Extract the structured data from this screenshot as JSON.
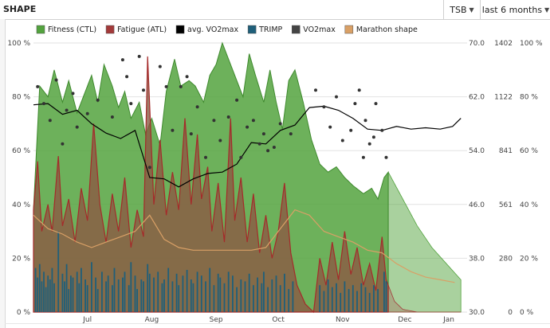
{
  "header": {
    "title": "SHAPE",
    "metric_select": "TSB",
    "range_select": "last 6 months"
  },
  "chart_data": {
    "type": "area",
    "legend": [
      {
        "name": "Fitness (CTL)",
        "color": "#53a33e"
      },
      {
        "name": "Fatigue (ATL)",
        "color": "#a33a3a"
      },
      {
        "name": "avg. VO2max",
        "color": "#000000"
      },
      {
        "name": "TRIMP",
        "color": "#1f5f7a"
      },
      {
        "name": "VO2max",
        "color": "#444444"
      },
      {
        "name": "Marathon shape",
        "color": "#d9a066"
      }
    ],
    "x_ticks": [
      "Jul",
      "Aug",
      "Sep",
      "Oct",
      "Nov",
      "Dec",
      "Jan"
    ],
    "x_domain": [
      "2016-06-19",
      "2017-01-14"
    ],
    "y_left": {
      "ticks": [
        "100 %",
        "80 %",
        "60 %",
        "40 %",
        "20 %",
        "0 %"
      ],
      "range": [
        0,
        100
      ]
    },
    "y_vo2max": {
      "ticks": [
        "70.0",
        "62.0",
        "54.0",
        "46.0",
        "38.0",
        "30.0"
      ],
      "range": [
        30,
        70
      ]
    },
    "y_trimp": {
      "ticks": [
        "1402",
        "1122",
        "841",
        "561",
        "280",
        "0"
      ],
      "range": [
        0,
        1402
      ]
    },
    "y_right": {
      "ticks": [
        "100 %",
        "80 %",
        "60 %",
        "40 %",
        "20 %",
        "0 %"
      ],
      "range": [
        0,
        100
      ]
    },
    "fitness": [
      [
        "2016-06-19",
        38
      ],
      [
        "2016-06-22",
        84
      ],
      [
        "2016-06-26",
        80
      ],
      [
        "2016-06-29",
        90
      ],
      [
        "2016-07-03",
        78
      ],
      [
        "2016-07-06",
        86
      ],
      [
        "2016-07-10",
        74
      ],
      [
        "2016-07-14",
        82
      ],
      [
        "2016-07-17",
        88
      ],
      [
        "2016-07-20",
        78
      ],
      [
        "2016-07-23",
        92
      ],
      [
        "2016-07-27",
        84
      ],
      [
        "2016-07-30",
        76
      ],
      [
        "2016-08-02",
        82
      ],
      [
        "2016-08-05",
        72
      ],
      [
        "2016-08-09",
        78
      ],
      [
        "2016-08-12",
        66
      ],
      [
        "2016-08-15",
        72
      ],
      [
        "2016-08-19",
        62
      ],
      [
        "2016-08-22",
        82
      ],
      [
        "2016-08-26",
        94
      ],
      [
        "2016-08-29",
        84
      ],
      [
        "2016-09-02",
        86
      ],
      [
        "2016-09-05",
        84
      ],
      [
        "2016-09-09",
        78
      ],
      [
        "2016-09-12",
        88
      ],
      [
        "2016-09-15",
        92
      ],
      [
        "2016-09-18",
        100
      ],
      [
        "2016-09-21",
        94
      ],
      [
        "2016-09-25",
        86
      ],
      [
        "2016-09-28",
        80
      ],
      [
        "2016-10-01",
        96
      ],
      [
        "2016-10-04",
        88
      ],
      [
        "2016-10-08",
        78
      ],
      [
        "2016-10-11",
        90
      ],
      [
        "2016-10-14",
        78
      ],
      [
        "2016-10-17",
        68
      ],
      [
        "2016-10-20",
        86
      ],
      [
        "2016-10-23",
        90
      ],
      [
        "2016-10-27",
        78
      ],
      [
        "2016-10-31",
        64
      ],
      [
        "2016-11-04",
        55
      ],
      [
        "2016-11-08",
        52
      ],
      [
        "2016-11-12",
        54
      ],
      [
        "2016-11-16",
        50
      ],
      [
        "2016-11-20",
        47
      ],
      [
        "2016-11-25",
        44
      ],
      [
        "2016-11-29",
        46
      ],
      [
        "2016-12-02",
        42
      ],
      [
        "2016-12-05",
        50
      ],
      [
        "2016-12-07",
        52
      ]
    ],
    "fitness_forecast": [
      [
        "2016-12-07",
        52
      ],
      [
        "2016-12-14",
        42
      ],
      [
        "2016-12-21",
        32
      ],
      [
        "2016-12-28",
        24
      ],
      [
        "2017-01-04",
        18
      ],
      [
        "2017-01-11",
        12
      ]
    ],
    "fatigue": [
      [
        "2016-06-19",
        38
      ],
      [
        "2016-06-21",
        56
      ],
      [
        "2016-06-23",
        30
      ],
      [
        "2016-06-26",
        40
      ],
      [
        "2016-06-28",
        30
      ],
      [
        "2016-07-01",
        58
      ],
      [
        "2016-07-03",
        32
      ],
      [
        "2016-07-06",
        42
      ],
      [
        "2016-07-09",
        26
      ],
      [
        "2016-07-12",
        46
      ],
      [
        "2016-07-15",
        34
      ],
      [
        "2016-07-18",
        70
      ],
      [
        "2016-07-21",
        40
      ],
      [
        "2016-07-24",
        26
      ],
      [
        "2016-07-27",
        44
      ],
      [
        "2016-07-30",
        30
      ],
      [
        "2016-08-02",
        50
      ],
      [
        "2016-08-05",
        24
      ],
      [
        "2016-08-08",
        38
      ],
      [
        "2016-08-11",
        28
      ],
      [
        "2016-08-13",
        95
      ],
      [
        "2016-08-16",
        40
      ],
      [
        "2016-08-19",
        64
      ],
      [
        "2016-08-22",
        36
      ],
      [
        "2016-08-25",
        52
      ],
      [
        "2016-08-28",
        38
      ],
      [
        "2016-08-31",
        72
      ],
      [
        "2016-09-03",
        40
      ],
      [
        "2016-09-06",
        66
      ],
      [
        "2016-09-08",
        42
      ],
      [
        "2016-09-11",
        54
      ],
      [
        "2016-09-13",
        30
      ],
      [
        "2016-09-16",
        48
      ],
      [
        "2016-09-19",
        26
      ],
      [
        "2016-09-22",
        72
      ],
      [
        "2016-09-24",
        34
      ],
      [
        "2016-09-27",
        50
      ],
      [
        "2016-09-30",
        26
      ],
      [
        "2016-10-03",
        44
      ],
      [
        "2016-10-06",
        22
      ],
      [
        "2016-10-09",
        36
      ],
      [
        "2016-10-12",
        20
      ],
      [
        "2016-10-15",
        30
      ],
      [
        "2016-10-18",
        48
      ],
      [
        "2016-10-21",
        22
      ],
      [
        "2016-10-24",
        10
      ],
      [
        "2016-10-28",
        3
      ],
      [
        "2016-11-01",
        0
      ],
      [
        "2016-11-04",
        20
      ],
      [
        "2016-11-07",
        10
      ],
      [
        "2016-11-10",
        26
      ],
      [
        "2016-11-13",
        12
      ],
      [
        "2016-11-16",
        30
      ],
      [
        "2016-11-19",
        14
      ],
      [
        "2016-11-22",
        24
      ],
      [
        "2016-11-25",
        10
      ],
      [
        "2016-11-28",
        18
      ],
      [
        "2016-12-01",
        8
      ],
      [
        "2016-12-04",
        28
      ],
      [
        "2016-12-06",
        12
      ],
      [
        "2016-12-07",
        10
      ]
    ],
    "fatigue_forecast": [
      [
        "2016-12-07",
        10
      ],
      [
        "2016-12-10",
        4
      ],
      [
        "2016-12-14",
        1
      ],
      [
        "2016-12-21",
        0
      ],
      [
        "2017-01-11",
        0
      ]
    ],
    "marathon_shape": [
      [
        "2016-06-19",
        36
      ],
      [
        "2016-06-26",
        31
      ],
      [
        "2016-07-03",
        29
      ],
      [
        "2016-07-10",
        26
      ],
      [
        "2016-07-17",
        24
      ],
      [
        "2016-07-24",
        26
      ],
      [
        "2016-07-31",
        28
      ],
      [
        "2016-08-07",
        30
      ],
      [
        "2016-08-14",
        36
      ],
      [
        "2016-08-21",
        27
      ],
      [
        "2016-08-28",
        24
      ],
      [
        "2016-09-04",
        23
      ],
      [
        "2016-09-11",
        23
      ],
      [
        "2016-09-18",
        23
      ],
      [
        "2016-09-25",
        23
      ],
      [
        "2016-10-02",
        23
      ],
      [
        "2016-10-09",
        24
      ],
      [
        "2016-10-16",
        31
      ],
      [
        "2016-10-23",
        38
      ],
      [
        "2016-10-30",
        36
      ],
      [
        "2016-11-06",
        30
      ],
      [
        "2016-11-13",
        28
      ],
      [
        "2016-11-20",
        26
      ],
      [
        "2016-11-27",
        23
      ],
      [
        "2016-12-04",
        22
      ],
      [
        "2016-12-11",
        18
      ],
      [
        "2016-12-18",
        15
      ],
      [
        "2016-12-25",
        13
      ],
      [
        "2017-01-01",
        12
      ],
      [
        "2017-01-08",
        11
      ]
    ],
    "avg_vo2max": [
      [
        "2016-06-19",
        60.8
      ],
      [
        "2016-06-26",
        61.0
      ],
      [
        "2016-07-03",
        59.4
      ],
      [
        "2016-07-10",
        60.0
      ],
      [
        "2016-07-17",
        58.0
      ],
      [
        "2016-07-24",
        56.6
      ],
      [
        "2016-07-31",
        55.8
      ],
      [
        "2016-08-07",
        57.0
      ],
      [
        "2016-08-14",
        50.0
      ],
      [
        "2016-08-21",
        49.8
      ],
      [
        "2016-08-28",
        48.6
      ],
      [
        "2016-09-04",
        49.8
      ],
      [
        "2016-09-11",
        50.6
      ],
      [
        "2016-09-18",
        50.8
      ],
      [
        "2016-09-25",
        52.0
      ],
      [
        "2016-10-02",
        55.2
      ],
      [
        "2016-10-09",
        55.0
      ],
      [
        "2016-10-16",
        57.0
      ],
      [
        "2016-10-23",
        57.8
      ],
      [
        "2016-10-30",
        60.4
      ],
      [
        "2016-11-06",
        60.6
      ],
      [
        "2016-11-13",
        60.0
      ],
      [
        "2016-11-20",
        58.8
      ],
      [
        "2016-11-27",
        57.2
      ],
      [
        "2016-12-04",
        57.0
      ],
      [
        "2016-12-11",
        57.6
      ],
      [
        "2016-12-18",
        57.2
      ],
      [
        "2016-12-25",
        57.4
      ],
      [
        "2017-01-01",
        57.2
      ],
      [
        "2017-01-07",
        57.6
      ],
      [
        "2017-01-11",
        58.8
      ]
    ],
    "vo2max_points": [
      [
        "2016-06-21",
        63.5
      ],
      [
        "2016-06-24",
        61.0
      ],
      [
        "2016-06-27",
        58.5
      ],
      [
        "2016-06-30",
        64.5
      ],
      [
        "2016-07-03",
        55.0
      ],
      [
        "2016-07-05",
        60.0
      ],
      [
        "2016-07-08",
        62.5
      ],
      [
        "2016-07-10",
        57.5
      ],
      [
        "2016-07-15",
        59.5
      ],
      [
        "2016-07-20",
        61.5
      ],
      [
        "2016-07-27",
        59.0
      ],
      [
        "2016-08-01",
        67.5
      ],
      [
        "2016-08-03",
        65.0
      ],
      [
        "2016-08-05",
        61.0
      ],
      [
        "2016-08-09",
        68.0
      ],
      [
        "2016-08-11",
        63.0
      ],
      [
        "2016-08-14",
        51.5
      ],
      [
        "2016-08-19",
        66.5
      ],
      [
        "2016-08-22",
        63.5
      ],
      [
        "2016-08-25",
        57.0
      ],
      [
        "2016-08-29",
        63.5
      ],
      [
        "2016-09-01",
        65.0
      ],
      [
        "2016-09-03",
        56.5
      ],
      [
        "2016-09-06",
        60.5
      ],
      [
        "2016-09-10",
        53.0
      ],
      [
        "2016-09-14",
        58.5
      ],
      [
        "2016-09-17",
        55.5
      ],
      [
        "2016-09-21",
        59.0
      ],
      [
        "2016-09-25",
        61.5
      ],
      [
        "2016-09-27",
        53.0
      ],
      [
        "2016-09-30",
        57.5
      ],
      [
        "2016-10-03",
        58.5
      ],
      [
        "2016-10-06",
        55.0
      ],
      [
        "2016-10-08",
        56.5
      ],
      [
        "2016-10-13",
        54.5
      ],
      [
        "2016-10-16",
        58.0
      ],
      [
        "2016-10-21",
        56.5
      ],
      [
        "2016-11-02",
        63.0
      ],
      [
        "2016-11-06",
        60.5
      ],
      [
        "2016-11-09",
        57.5
      ],
      [
        "2016-11-12",
        62.0
      ],
      [
        "2016-11-15",
        55.5
      ],
      [
        "2016-11-19",
        57.0
      ],
      [
        "2016-11-23",
        63.0
      ],
      [
        "2016-11-26",
        58.5
      ],
      [
        "2016-11-28",
        55.0
      ],
      [
        "2016-12-01",
        61.0
      ],
      [
        "2016-12-04",
        57.0
      ],
      [
        "2016-12-06",
        53.0
      ],
      [
        "2016-11-21",
        61.0
      ],
      [
        "2016-11-25",
        53.0
      ],
      [
        "2016-10-10",
        54.0
      ],
      [
        "2016-11-30",
        56.0
      ]
    ],
    "trimp": [
      [
        "2016-06-20",
        230
      ],
      [
        "2016-06-21",
        180
      ],
      [
        "2016-06-22",
        250
      ],
      [
        "2016-06-23",
        160
      ],
      [
        "2016-06-24",
        210
      ],
      [
        "2016-06-25",
        130
      ],
      [
        "2016-06-26",
        190
      ],
      [
        "2016-06-27",
        170
      ],
      [
        "2016-06-28",
        230
      ],
      [
        "2016-06-29",
        150
      ],
      [
        "2016-07-01",
        420
      ],
      [
        "2016-07-03",
        200
      ],
      [
        "2016-07-04",
        160
      ],
      [
        "2016-07-05",
        250
      ],
      [
        "2016-07-06",
        120
      ],
      [
        "2016-07-07",
        190
      ],
      [
        "2016-07-08",
        180
      ],
      [
        "2016-07-10",
        210
      ],
      [
        "2016-07-11",
        150
      ],
      [
        "2016-07-12",
        230
      ],
      [
        "2016-07-14",
        170
      ],
      [
        "2016-07-15",
        140
      ],
      [
        "2016-07-17",
        260
      ],
      [
        "2016-07-19",
        180
      ],
      [
        "2016-07-20",
        120
      ],
      [
        "2016-07-22",
        210
      ],
      [
        "2016-07-24",
        160
      ],
      [
        "2016-07-25",
        190
      ],
      [
        "2016-07-27",
        140
      ],
      [
        "2016-07-28",
        230
      ],
      [
        "2016-07-30",
        170
      ],
      [
        "2016-08-01",
        180
      ],
      [
        "2016-08-02",
        210
      ],
      [
        "2016-08-04",
        140
      ],
      [
        "2016-08-05",
        260
      ],
      [
        "2016-08-07",
        190
      ],
      [
        "2016-08-08",
        120
      ],
      [
        "2016-08-10",
        170
      ],
      [
        "2016-08-11",
        160
      ],
      [
        "2016-08-13",
        250
      ],
      [
        "2016-08-14",
        200
      ],
      [
        "2016-08-16",
        180
      ],
      [
        "2016-08-18",
        210
      ],
      [
        "2016-08-20",
        150
      ],
      [
        "2016-08-21",
        170
      ],
      [
        "2016-08-23",
        230
      ],
      [
        "2016-08-25",
        160
      ],
      [
        "2016-08-27",
        200
      ],
      [
        "2016-08-28",
        140
      ],
      [
        "2016-08-30",
        190
      ],
      [
        "2016-09-01",
        220
      ],
      [
        "2016-09-03",
        170
      ],
      [
        "2016-09-04",
        150
      ],
      [
        "2016-09-06",
        210
      ],
      [
        "2016-09-08",
        190
      ],
      [
        "2016-09-10",
        160
      ],
      [
        "2016-09-12",
        230
      ],
      [
        "2016-09-14",
        140
      ],
      [
        "2016-09-16",
        200
      ],
      [
        "2016-09-17",
        180
      ],
      [
        "2016-09-19",
        150
      ],
      [
        "2016-09-21",
        210
      ],
      [
        "2016-09-23",
        190
      ],
      [
        "2016-09-25",
        130
      ],
      [
        "2016-09-27",
        170
      ],
      [
        "2016-09-29",
        160
      ],
      [
        "2016-10-01",
        200
      ],
      [
        "2016-10-03",
        140
      ],
      [
        "2016-10-05",
        180
      ],
      [
        "2016-10-07",
        150
      ],
      [
        "2016-10-08",
        210
      ],
      [
        "2016-10-10",
        130
      ],
      [
        "2016-10-12",
        170
      ],
      [
        "2016-10-14",
        190
      ],
      [
        "2016-10-16",
        140
      ],
      [
        "2016-10-18",
        200
      ],
      [
        "2016-10-20",
        120
      ],
      [
        "2016-10-22",
        160
      ],
      [
        "2016-11-04",
        140
      ],
      [
        "2016-11-06",
        110
      ],
      [
        "2016-11-08",
        170
      ],
      [
        "2016-11-10",
        130
      ],
      [
        "2016-11-12",
        150
      ],
      [
        "2016-11-14",
        100
      ],
      [
        "2016-11-16",
        160
      ],
      [
        "2016-11-18",
        120
      ],
      [
        "2016-11-20",
        140
      ],
      [
        "2016-11-22",
        110
      ],
      [
        "2016-11-24",
        150
      ],
      [
        "2016-11-26",
        130
      ],
      [
        "2016-11-28",
        100
      ],
      [
        "2016-11-30",
        140
      ],
      [
        "2016-12-02",
        120
      ],
      [
        "2016-12-05",
        210
      ],
      [
        "2016-12-06",
        160
      ]
    ]
  }
}
